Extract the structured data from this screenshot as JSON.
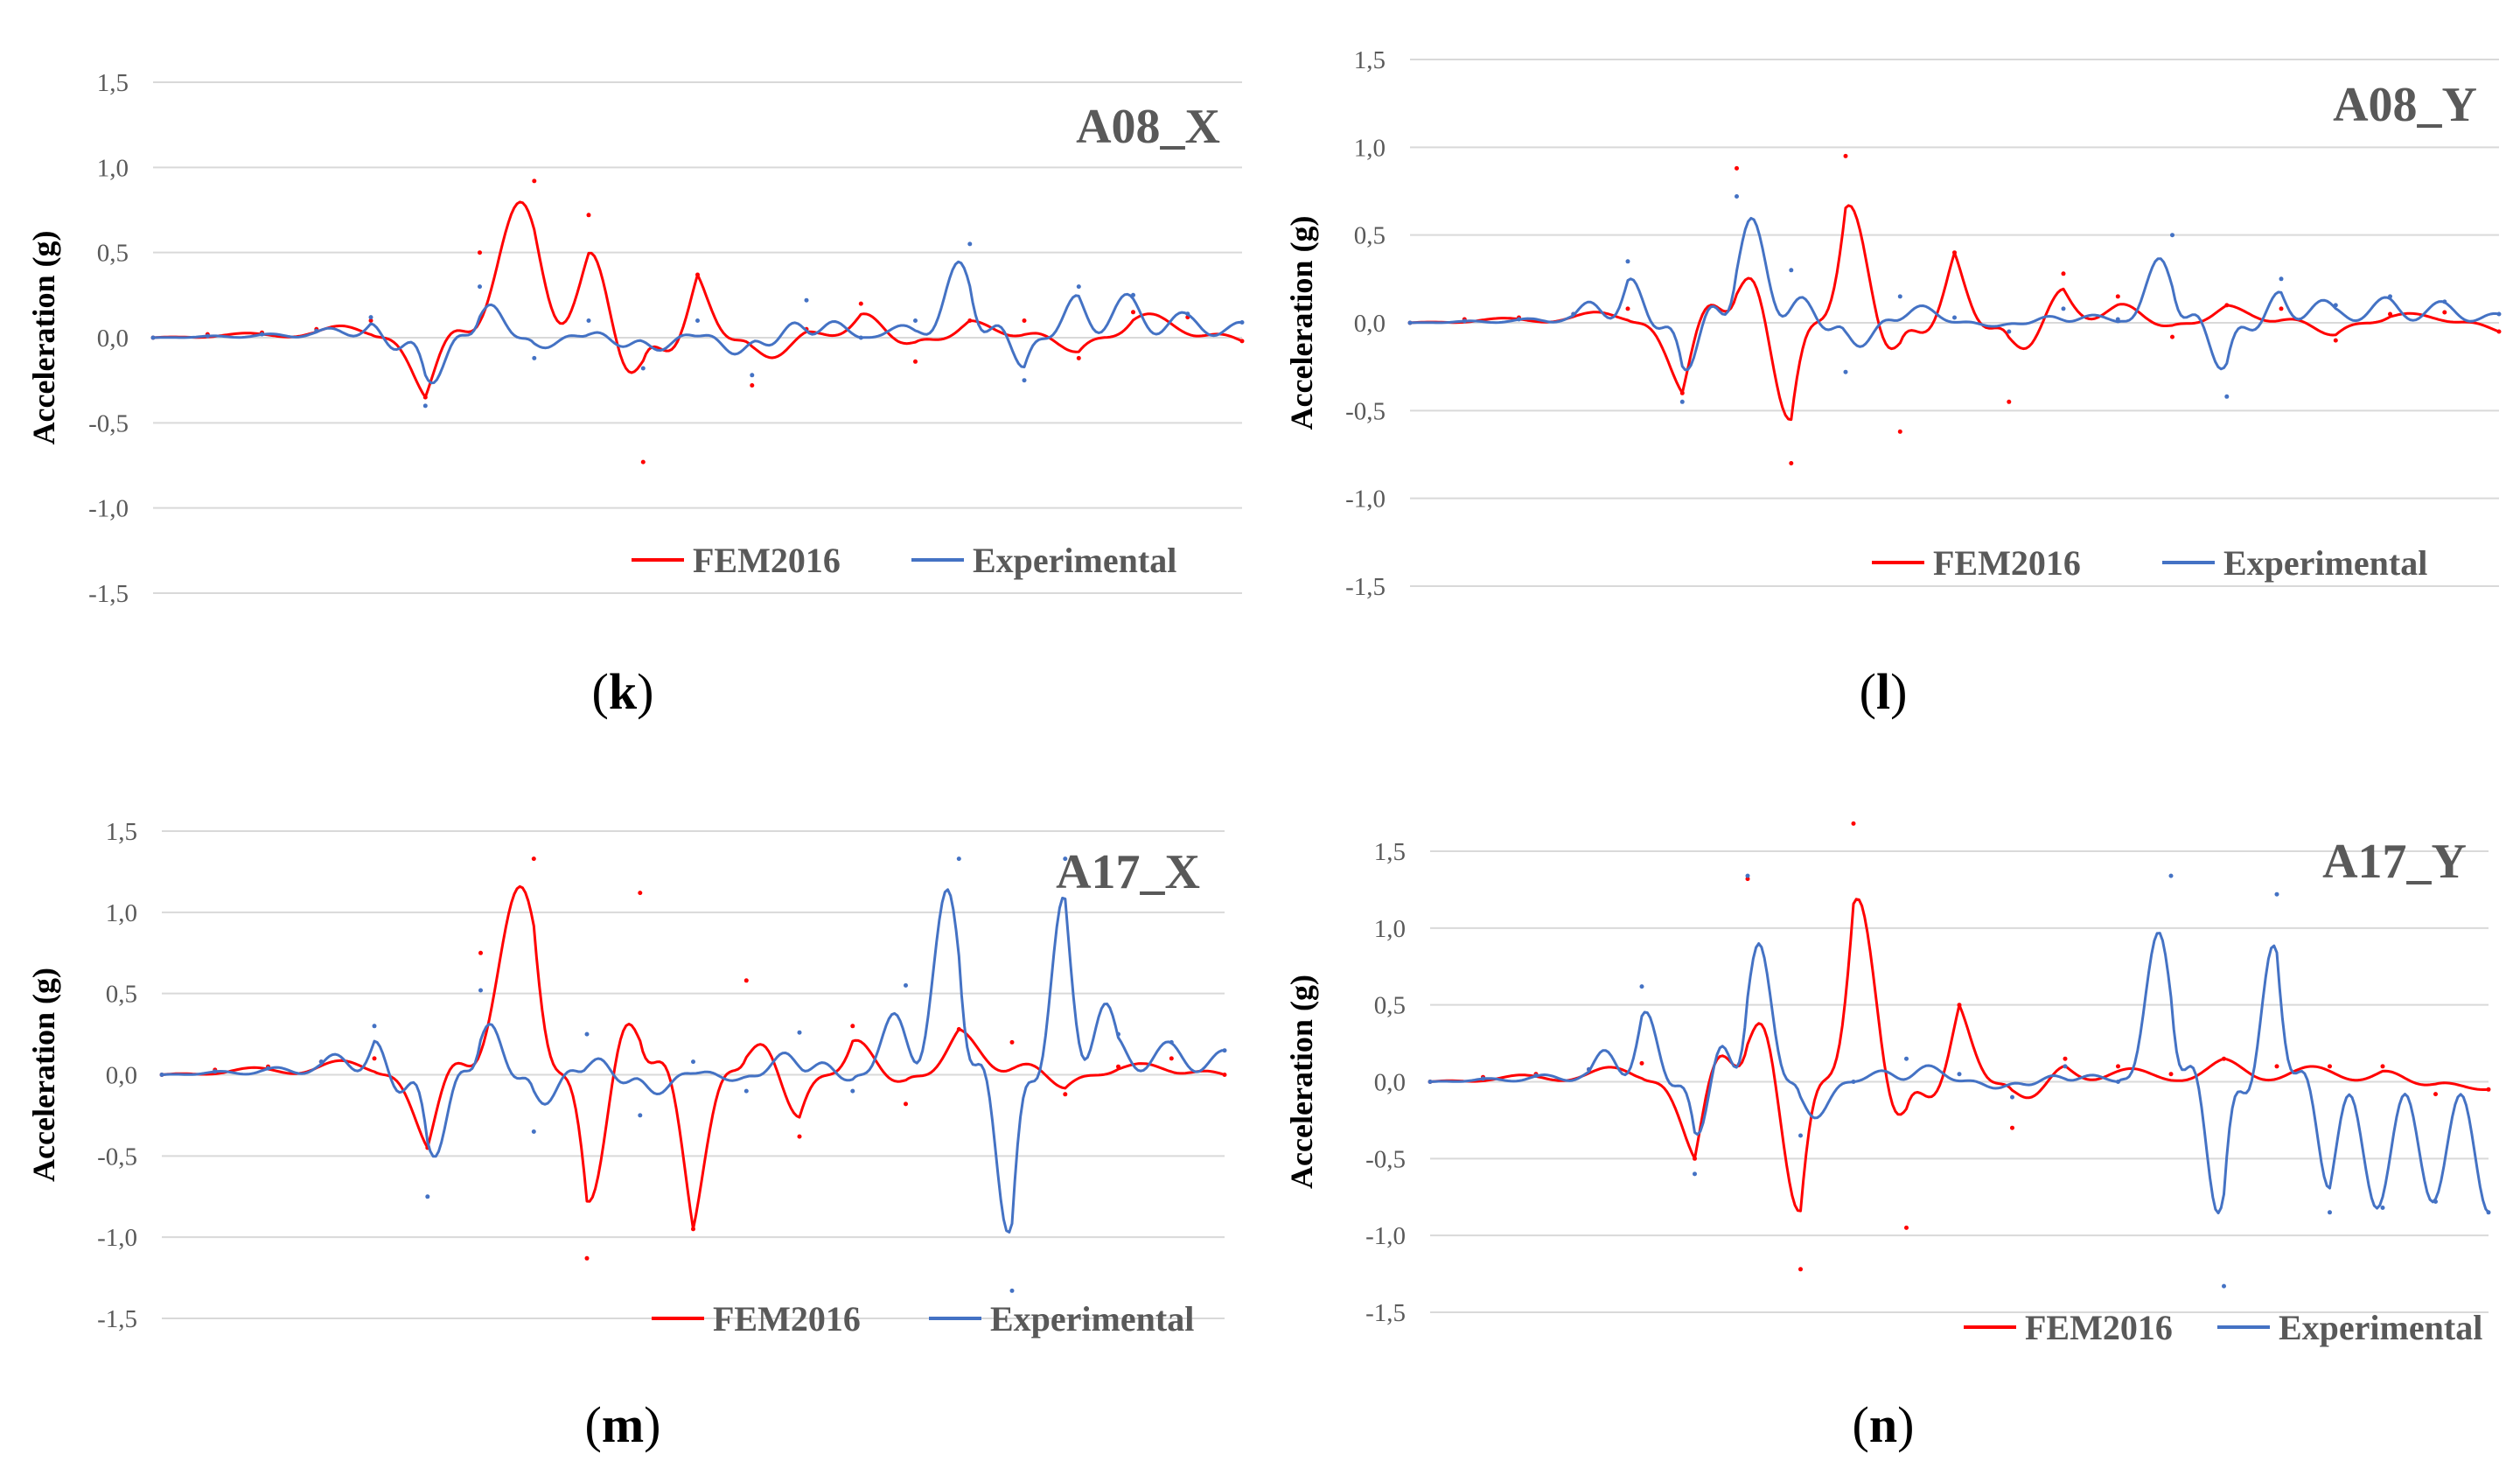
{
  "figure": {
    "panels_count": 4
  },
  "colors": {
    "fem": "#ff0000",
    "exp": "#4472c4",
    "grid": "#d9d9d9",
    "text": "#595959"
  },
  "chart_data": [
    {
      "type": "line",
      "panel_label": "k",
      "title": "A08_X",
      "ylabel": "Acceleration (g)",
      "xlabel": "",
      "ylim": [
        -1.5,
        1.5
      ],
      "yticks": [
        "1,5",
        "1,0",
        "0,5",
        "0,0",
        "-0,5",
        "-1,0",
        "-1,5"
      ],
      "grid": true,
      "legend": {
        "position": "bottom-right",
        "entries": [
          "FEM2016",
          "Experimental"
        ]
      },
      "x": [
        0,
        5,
        10,
        15,
        20,
        25,
        30,
        35,
        40,
        45,
        50,
        55,
        60,
        65,
        70,
        75,
        80,
        85,
        90,
        95,
        100
      ],
      "series": [
        {
          "name": "FEM2016",
          "color": "#ff0000",
          "values": [
            0.0,
            0.02,
            0.03,
            0.05,
            0.1,
            -0.35,
            0.5,
            0.92,
            0.72,
            -0.73,
            0.37,
            -0.28,
            0.05,
            0.2,
            -0.14,
            0.1,
            0.1,
            -0.12,
            0.15,
            0.12,
            -0.02
          ]
        },
        {
          "name": "Experimental",
          "color": "#4472c4",
          "values": [
            0.0,
            0.01,
            0.02,
            0.04,
            0.12,
            -0.4,
            0.3,
            -0.12,
            0.1,
            -0.18,
            0.1,
            -0.22,
            0.22,
            0.0,
            0.1,
            0.55,
            -0.25,
            0.3,
            0.25,
            0.14,
            0.09
          ]
        }
      ]
    },
    {
      "type": "line",
      "panel_label": "l",
      "title": "A08_Y",
      "ylabel": "Acceleration (g)",
      "xlabel": "",
      "ylim": [
        -1.5,
        1.5
      ],
      "yticks": [
        "1,5",
        "1,0",
        "0,5",
        "0,0",
        "-0,5",
        "-1,0",
        "-1,5"
      ],
      "grid": true,
      "legend": {
        "position": "bottom-right",
        "entries": [
          "FEM2016",
          "Experimental"
        ]
      },
      "x": [
        0,
        5,
        10,
        15,
        20,
        25,
        30,
        35,
        40,
        45,
        50,
        55,
        60,
        65,
        70,
        75,
        80,
        85,
        90,
        95,
        100
      ],
      "series": [
        {
          "name": "FEM2016",
          "color": "#ff0000",
          "values": [
            0.0,
            0.02,
            0.03,
            0.05,
            0.08,
            -0.4,
            0.88,
            -0.8,
            0.95,
            -0.62,
            0.4,
            -0.45,
            0.28,
            0.15,
            -0.08,
            0.1,
            0.08,
            -0.1,
            0.05,
            0.06,
            -0.05
          ]
        },
        {
          "name": "Experimental",
          "color": "#4472c4",
          "values": [
            0.0,
            0.01,
            0.02,
            0.05,
            0.35,
            -0.45,
            0.72,
            0.3,
            -0.28,
            0.15,
            0.03,
            -0.05,
            0.08,
            0.02,
            0.5,
            -0.42,
            0.25,
            0.1,
            0.15,
            0.12,
            0.05
          ]
        }
      ]
    },
    {
      "type": "line",
      "panel_label": "m",
      "title": "A17_X",
      "ylabel": "Acceleration (g)",
      "xlabel": "",
      "ylim": [
        -1.5,
        1.5
      ],
      "yticks": [
        "1,5",
        "1,0",
        "0,5",
        "0,0",
        "-0,5",
        "-1,0",
        "-1,5"
      ],
      "grid": true,
      "legend": {
        "position": "bottom-right",
        "entries": [
          "FEM2016",
          "Experimental"
        ]
      },
      "x": [
        0,
        5,
        10,
        15,
        20,
        25,
        30,
        35,
        40,
        45,
        50,
        55,
        60,
        65,
        70,
        75,
        80,
        85,
        90,
        95,
        100
      ],
      "series": [
        {
          "name": "FEM2016",
          "color": "#ff0000",
          "values": [
            0.0,
            0.03,
            0.05,
            0.08,
            0.1,
            -0.45,
            0.75,
            1.33,
            -1.13,
            1.12,
            -0.95,
            0.58,
            -0.38,
            0.3,
            -0.18,
            0.28,
            0.2,
            -0.12,
            0.05,
            0.1,
            0.0
          ]
        },
        {
          "name": "Experimental",
          "color": "#4472c4",
          "values": [
            0.0,
            0.02,
            0.04,
            0.08,
            0.3,
            -0.75,
            0.52,
            -0.35,
            0.25,
            -0.25,
            0.08,
            -0.1,
            0.26,
            -0.1,
            0.55,
            1.33,
            -1.33,
            1.33,
            0.25,
            0.2,
            0.15
          ]
        }
      ]
    },
    {
      "type": "line",
      "panel_label": "n",
      "title": "A17_Y",
      "ylabel": "Acceleration (g)",
      "xlabel": "",
      "ylim": [
        -1.5,
        1.5
      ],
      "yticks": [
        "1,5",
        "1,0",
        "0,5",
        "0,0",
        "-0,5",
        "-1,0",
        "-1,5"
      ],
      "grid": true,
      "legend": {
        "position": "bottom-right",
        "entries": [
          "FEM2016",
          "Experimental"
        ]
      },
      "x": [
        0,
        5,
        10,
        15,
        20,
        25,
        30,
        35,
        40,
        45,
        50,
        55,
        60,
        65,
        70,
        75,
        80,
        85,
        90,
        95,
        100
      ],
      "series": [
        {
          "name": "FEM2016",
          "color": "#ff0000",
          "values": [
            0.0,
            0.03,
            0.05,
            0.08,
            0.12,
            -0.5,
            1.32,
            -1.22,
            1.68,
            -0.95,
            0.5,
            -0.3,
            0.15,
            0.1,
            0.05,
            0.15,
            0.1,
            0.1,
            0.1,
            -0.08,
            -0.05
          ]
        },
        {
          "name": "Experimental",
          "color": "#4472c4",
          "values": [
            0.0,
            0.02,
            0.04,
            0.08,
            0.62,
            -0.6,
            1.34,
            -0.35,
            0.0,
            0.15,
            0.05,
            -0.1,
            0.1,
            0.0,
            1.34,
            -1.33,
            1.22,
            -0.85,
            -0.82,
            -0.78,
            -0.85
          ]
        }
      ]
    }
  ]
}
